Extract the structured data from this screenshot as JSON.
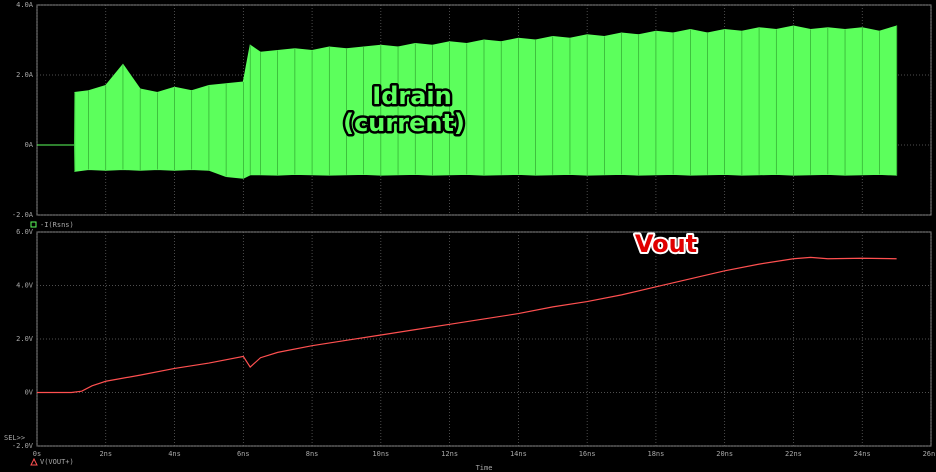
{
  "chart_data": [
    {
      "type": "band",
      "legend": "-I(Rsns)",
      "color": "#5cff5c",
      "annotations": [
        "Idrain",
        "(current)"
      ],
      "x": [
        0,
        1.09,
        1.1,
        1.5,
        2,
        2.5,
        3,
        3.5,
        4,
        4.5,
        5,
        5.5,
        6,
        6.2,
        6.5,
        7,
        7.5,
        8,
        8.5,
        9,
        9.5,
        10,
        10.5,
        11,
        11.5,
        12,
        12.5,
        13,
        13.5,
        14,
        14.5,
        15,
        15.5,
        16,
        16.5,
        17,
        17.5,
        18,
        18.5,
        19,
        19.5,
        20,
        20.5,
        21,
        21.5,
        22,
        22.5,
        23,
        23.5,
        24,
        24.5,
        25
      ],
      "high": [
        0,
        0,
        1.5,
        1.55,
        1.7,
        2.3,
        1.6,
        1.5,
        1.65,
        1.55,
        1.7,
        1.75,
        1.8,
        2.85,
        2.65,
        2.7,
        2.75,
        2.7,
        2.8,
        2.75,
        2.8,
        2.85,
        2.8,
        2.9,
        2.85,
        2.95,
        2.9,
        3.0,
        2.95,
        3.05,
        3.0,
        3.1,
        3.05,
        3.15,
        3.1,
        3.2,
        3.15,
        3.25,
        3.2,
        3.3,
        3.2,
        3.3,
        3.25,
        3.35,
        3.3,
        3.4,
        3.3,
        3.35,
        3.3,
        3.35,
        3.25,
        3.4
      ],
      "low": [
        0,
        0,
        -0.75,
        -0.7,
        -0.72,
        -0.7,
        -0.72,
        -0.7,
        -0.72,
        -0.7,
        -0.72,
        -0.9,
        -0.95,
        -0.85,
        -0.85,
        -0.86,
        -0.84,
        -0.85,
        -0.86,
        -0.85,
        -0.84,
        -0.86,
        -0.85,
        -0.84,
        -0.86,
        -0.85,
        -0.84,
        -0.86,
        -0.85,
        -0.84,
        -0.86,
        -0.85,
        -0.84,
        -0.86,
        -0.85,
        -0.84,
        -0.86,
        -0.85,
        -0.84,
        -0.86,
        -0.85,
        -0.84,
        -0.86,
        -0.85,
        -0.84,
        -0.86,
        -0.85,
        -0.84,
        -0.86,
        -0.85,
        -0.84,
        -0.86
      ],
      "xlim": [
        0,
        26
      ],
      "ylim": [
        -2,
        4
      ],
      "yticks": [
        {
          "value": 4,
          "label": "4.0A"
        },
        {
          "value": 2,
          "label": "2.0A"
        },
        {
          "value": 0,
          "label": "0A"
        },
        {
          "value": -2,
          "label": "-2.0A"
        }
      ],
      "grid": true
    },
    {
      "type": "line",
      "legend": "V(VOUT+)",
      "color": "#ff5050",
      "annotations": [
        "Vout"
      ],
      "x_label": "Time",
      "sel": "SEL>>",
      "x": [
        0,
        1,
        1.3,
        1.6,
        2,
        3,
        4,
        5,
        6,
        6.2,
        6.5,
        7,
        8,
        9,
        10,
        11,
        12,
        13,
        14,
        15,
        16,
        17,
        18,
        19,
        20,
        21,
        22,
        22.5,
        23,
        24,
        25
      ],
      "values": [
        0,
        0,
        0.05,
        0.25,
        0.42,
        0.65,
        0.9,
        1.1,
        1.35,
        0.95,
        1.3,
        1.5,
        1.75,
        1.95,
        2.15,
        2.35,
        2.55,
        2.75,
        2.95,
        3.2,
        3.4,
        3.65,
        3.95,
        4.25,
        4.55,
        4.8,
        5.0,
        5.05,
        5.0,
        5.02,
        5.0
      ],
      "xlim": [
        0,
        26
      ],
      "xticks": [
        {
          "value": 0,
          "label": "0s"
        },
        {
          "value": 2,
          "label": "2ns"
        },
        {
          "value": 4,
          "label": "4ns"
        },
        {
          "value": 6,
          "label": "6ns"
        },
        {
          "value": 8,
          "label": "8ns"
        },
        {
          "value": 10,
          "label": "10ns"
        },
        {
          "value": 12,
          "label": "12ns"
        },
        {
          "value": 14,
          "label": "14ns"
        },
        {
          "value": 16,
          "label": "16ns"
        },
        {
          "value": 18,
          "label": "18ns"
        },
        {
          "value": 20,
          "label": "20ns"
        },
        {
          "value": 22,
          "label": "22ns"
        },
        {
          "value": 24,
          "label": "24ns"
        },
        {
          "value": 26,
          "label": "26ns"
        }
      ],
      "ylim": [
        -2,
        6
      ],
      "yticks": [
        {
          "value": 6,
          "label": "6.0V"
        },
        {
          "value": 4,
          "label": "4.0V"
        },
        {
          "value": 2,
          "label": "2.0V"
        },
        {
          "value": 0,
          "label": "0V"
        },
        {
          "value": -2,
          "label": "-2.0V"
        }
      ],
      "grid": true
    }
  ]
}
